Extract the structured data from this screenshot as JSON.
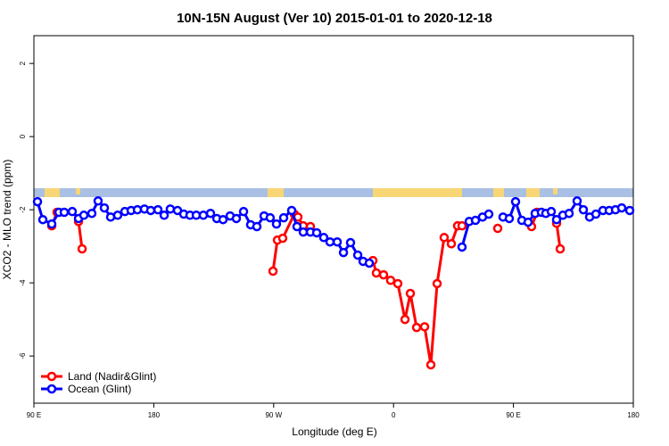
{
  "chart_data": {
    "type": "line",
    "title": "10N-15N August (Ver 10)   2015-01-01 to 2020-12-18",
    "x_label": "Longitude (deg E)",
    "y_label": "XCO2 - MLO trend (ppm)",
    "xlim": [
      90,
      540
    ],
    "xticks": [
      {
        "value": 90,
        "label": "90 E"
      },
      180,
      {
        "value": 270,
        "label": "90 W"
      },
      {
        "value": 360,
        "label": "0"
      },
      {
        "value": 450,
        "label": "90 E"
      },
      {
        "value": 540,
        "label": "180"
      }
    ],
    "ylim": [
      -7.29,
      2.76
    ],
    "yticks": [
      -6,
      -4,
      -2,
      0,
      2
    ],
    "legend": "bottom-left",
    "series": [
      {
        "name": "Land (Nadir&Glint)",
        "color": "#ff0000",
        "x": [
          103.4,
          107.4,
          null,
          123.5,
          126.2,
          null,
          269.5,
          272.8,
          276.8,
          285.5,
          288.2,
          292.2,
          297.6,
          null,
          344.5,
          347.1,
          352.5,
          357.8,
          363.2,
          368.6,
          372.6,
          377.3,
          383.3,
          388.0,
          392.7,
          398.0,
          403.4,
          408.1,
          411.4,
          null,
          438.2,
          null,
          463.6,
          467.7,
          null,
          482.4,
          485.1
        ],
        "values": [
          -2.44,
          -2.07,
          null,
          -2.32,
          -3.07,
          null,
          -3.68,
          -2.83,
          -2.78,
          -2.12,
          -2.2,
          -2.44,
          -2.46,
          null,
          -3.39,
          -3.73,
          -3.78,
          -3.93,
          -4.02,
          -5.0,
          -4.29,
          -5.22,
          -5.2,
          -6.24,
          -4.02,
          -2.76,
          -2.93,
          -2.44,
          -2.44,
          null,
          -2.51,
          null,
          -2.46,
          -2.07,
          null,
          -2.37,
          -3.07
        ]
      },
      {
        "name": "Ocean (Glint)",
        "color": "#0000ff",
        "x": [
          92.7,
          96.7,
          103.4,
          108.8,
          112.8,
          118.8,
          123.5,
          127.5,
          133.5,
          138.2,
          142.9,
          147.6,
          152.9,
          158.3,
          163.0,
          167.7,
          173.0,
          177.7,
          183.1,
          187.8,
          192.4,
          197.8,
          202.5,
          207.2,
          211.9,
          217.2,
          222.6,
          227.3,
          232.0,
          237.3,
          242.0,
          247.4,
          252.7,
          257.4,
          262.8,
          267.4,
          272.1,
          277.5,
          283.5,
          287.5,
          292.2,
          297.6,
          302.3,
          307.6,
          312.3,
          317.7,
          322.4,
          327.7,
          333.1,
          337.1,
          341.8,
          null,
          411.4,
          416.8,
          421.5,
          426.8,
          431.5,
          null,
          442.2,
          446.9,
          451.6,
          456.3,
          461.0,
          466.3,
          471.0,
          474.3,
          478.4,
          482.4,
          487.1,
          491.8,
          497.8,
          502.5,
          507.2,
          511.9,
          517.2,
          521.9,
          526.6,
          531.3,
          537.3
        ],
        "values": [
          -1.78,
          -2.27,
          -2.39,
          -2.07,
          -2.07,
          -2.05,
          -2.24,
          -2.15,
          -2.1,
          -1.76,
          -1.95,
          -2.2,
          -2.15,
          -2.05,
          -2.02,
          -2.0,
          -1.98,
          -2.02,
          -2.0,
          -2.15,
          -1.98,
          -2.02,
          -2.12,
          -2.15,
          -2.15,
          -2.15,
          -2.1,
          -2.24,
          -2.27,
          -2.17,
          -2.24,
          -2.05,
          -2.41,
          -2.46,
          -2.17,
          -2.22,
          -2.39,
          -2.22,
          -2.02,
          -2.46,
          -2.61,
          -2.61,
          -2.63,
          -2.76,
          -2.88,
          -2.88,
          -3.17,
          -2.9,
          -3.24,
          -3.41,
          -3.46,
          null,
          -3.02,
          -2.32,
          -2.29,
          -2.2,
          -2.12,
          null,
          -2.2,
          -2.24,
          -1.78,
          -2.29,
          -2.34,
          -2.1,
          -2.07,
          -2.1,
          -2.05,
          -2.27,
          -2.15,
          -2.1,
          -1.76,
          -2.0,
          -2.2,
          -2.12,
          -2.02,
          -2.02,
          -2.0,
          -1.95,
          -2.02
        ]
      }
    ]
  }
}
